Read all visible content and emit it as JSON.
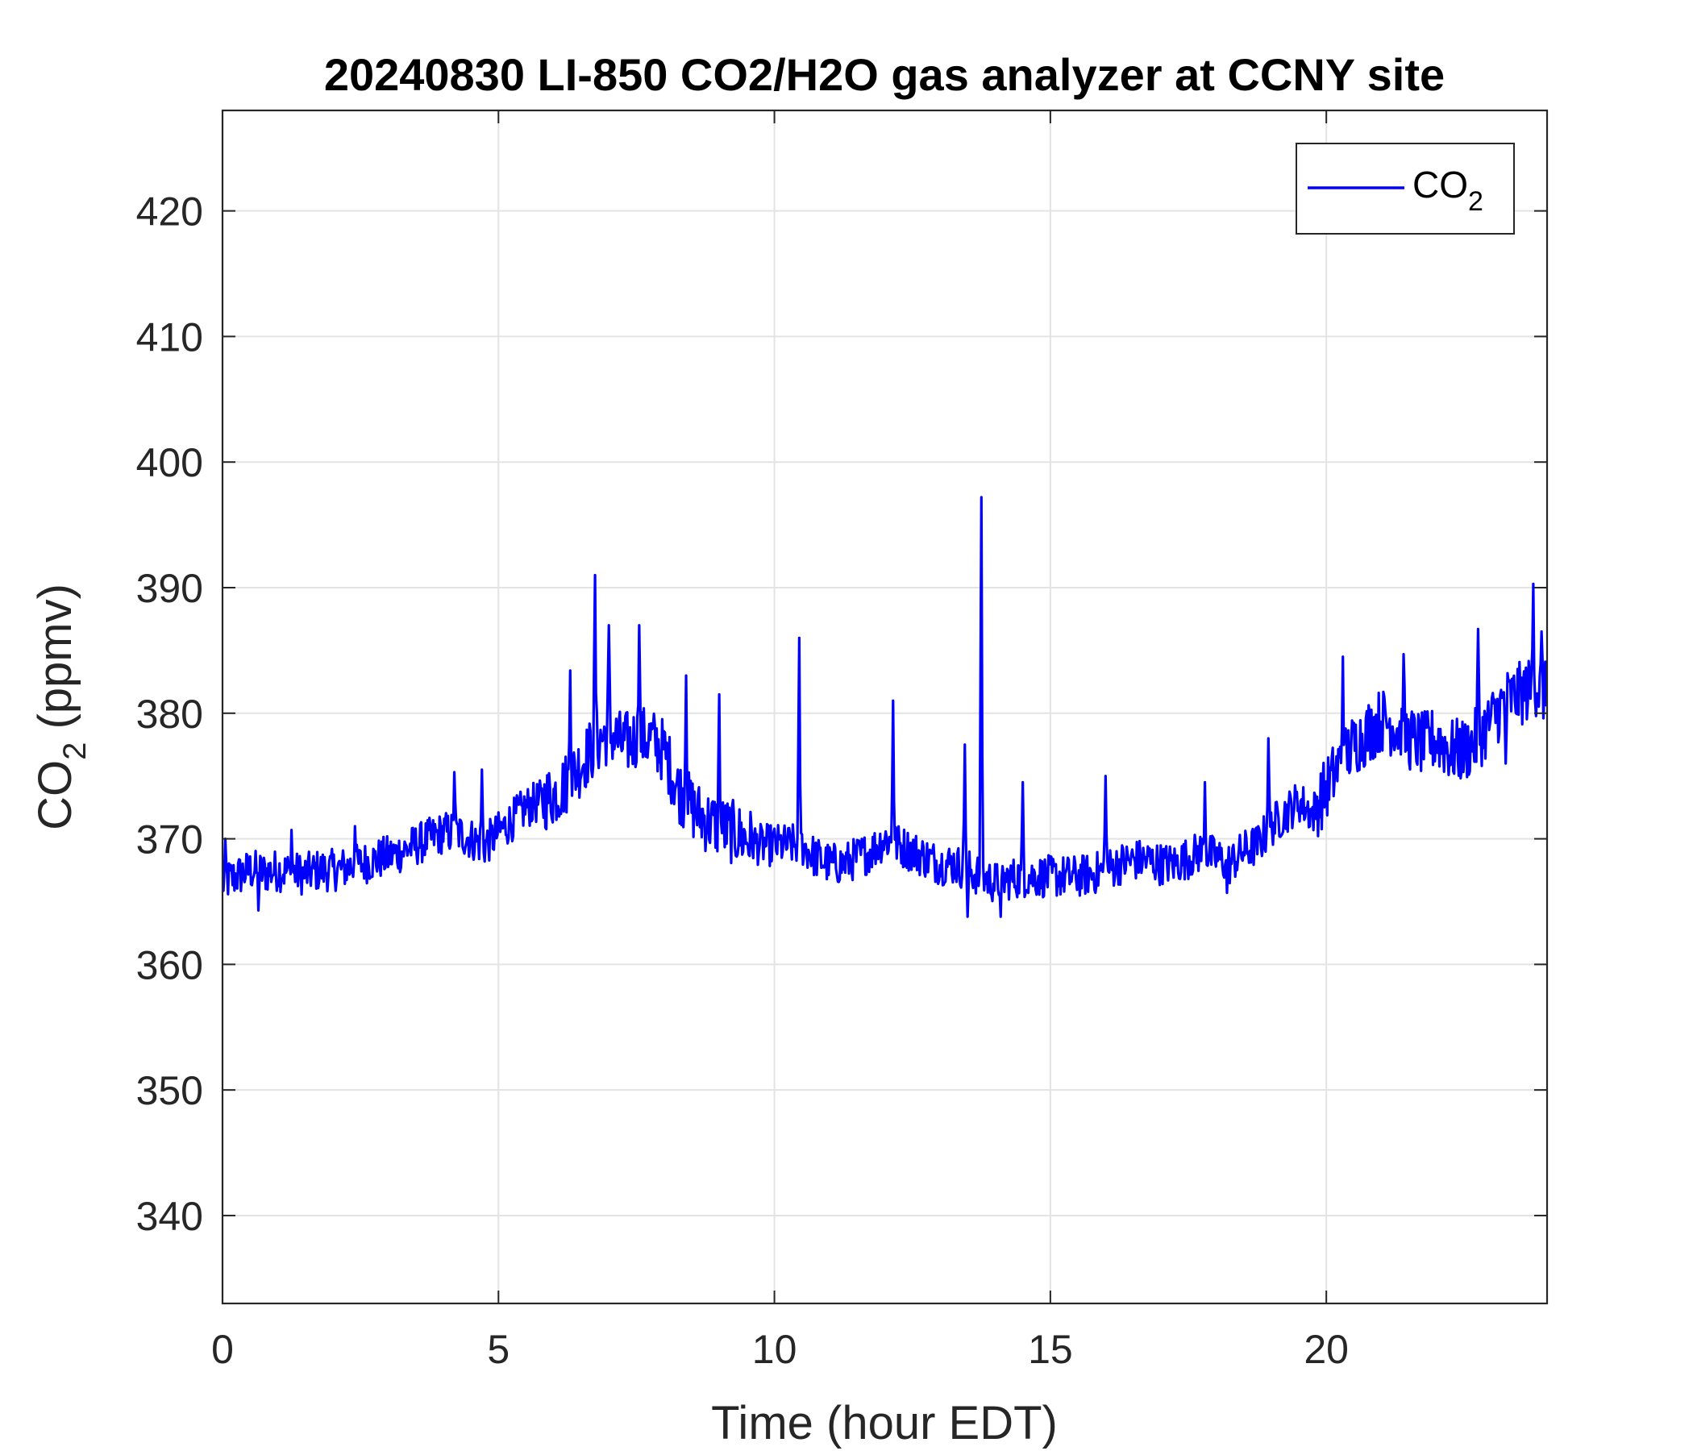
{
  "chart_data": {
    "type": "line",
    "title": "20240830 LI-850 CO2/H2O gas analyzer at CCNY site",
    "xlabel": "Time (hour EDT)",
    "ylabel": {
      "base": "CO",
      "subscript": "2",
      "suffix": " (ppmv)"
    },
    "xlim": [
      0,
      24
    ],
    "ylim": [
      333,
      428
    ],
    "xticks": [
      0,
      5,
      10,
      15,
      20
    ],
    "yticks": [
      340,
      350,
      360,
      370,
      380,
      390,
      400,
      410,
      420
    ],
    "grid": true,
    "legend_placement": "top-right",
    "colors": {
      "series": "#0000ff",
      "grid": "#e3e3e3",
      "axis": "#262626"
    },
    "series": [
      {
        "name": {
          "base": "CO",
          "subscript": "2"
        },
        "x": [
          0.0,
          0.25,
          0.5,
          0.75,
          1.0,
          1.25,
          1.5,
          1.75,
          2.0,
          2.25,
          2.5,
          2.75,
          3.0,
          3.25,
          3.5,
          3.75,
          4.0,
          4.25,
          4.5,
          4.75,
          5.0,
          5.25,
          5.5,
          5.75,
          6.0,
          6.25,
          6.5,
          6.75,
          7.0,
          7.25,
          7.5,
          7.75,
          8.0,
          8.25,
          8.5,
          8.75,
          9.0,
          9.25,
          9.5,
          9.75,
          10.0,
          10.25,
          10.5,
          10.75,
          11.0,
          11.25,
          11.5,
          11.75,
          12.0,
          12.25,
          12.5,
          12.75,
          13.0,
          13.25,
          13.5,
          13.75,
          14.0,
          14.25,
          14.5,
          14.75,
          15.0,
          15.25,
          15.5,
          15.75,
          16.0,
          16.25,
          16.5,
          16.75,
          17.0,
          17.25,
          17.5,
          17.75,
          18.0,
          18.25,
          18.5,
          18.75,
          19.0,
          19.25,
          19.5,
          19.75,
          20.0,
          20.25,
          20.5,
          20.75,
          21.0,
          21.25,
          21.5,
          21.75,
          22.0,
          22.25,
          22.5,
          22.75,
          23.0,
          23.25,
          23.5,
          23.75,
          24.0
        ],
        "values": [
          366.5,
          367.0,
          367.5,
          367.3,
          367.5,
          367.3,
          367.2,
          367.5,
          367.5,
          367.7,
          368.0,
          368.3,
          368.6,
          369.0,
          369.5,
          370.0,
          370.5,
          370.5,
          370.0,
          369.5,
          370.5,
          371.5,
          372.5,
          373.0,
          373.5,
          374.5,
          376.0,
          377.5,
          378.5,
          377.5,
          378.0,
          378.0,
          377.0,
          374.0,
          372.5,
          371.5,
          371.0,
          370.5,
          370.0,
          369.5,
          369.5,
          369.5,
          369.5,
          368.5,
          368.0,
          368.0,
          368.5,
          369.0,
          370.0,
          369.5,
          369.0,
          368.5,
          368.0,
          368.0,
          367.5,
          367.0,
          366.5,
          366.8,
          367.0,
          367.0,
          367.0,
          367.0,
          367.0,
          367.2,
          367.5,
          368.0,
          368.3,
          368.3,
          368.0,
          368.0,
          368.5,
          369.0,
          368.5,
          368.0,
          369.0,
          369.5,
          371.0,
          372.0,
          373.0,
          372.0,
          374.0,
          376.0,
          377.5,
          378.5,
          379.5,
          379.0,
          378.0,
          377.5,
          378.0,
          377.0,
          377.0,
          378.0,
          379.5,
          381.0,
          381.5,
          382.0,
          381.5
        ],
        "spikes": [
          {
            "x": 0.05,
            "value": 370.0
          },
          {
            "x": 1.25,
            "value": 370.7
          },
          {
            "x": 2.4,
            "value": 371.0
          },
          {
            "x": 4.2,
            "value": 375.3
          },
          {
            "x": 4.7,
            "value": 375.5
          },
          {
            "x": 6.3,
            "value": 383.4
          },
          {
            "x": 6.75,
            "value": 391.0
          },
          {
            "x": 7.0,
            "value": 387.0
          },
          {
            "x": 7.55,
            "value": 387.0
          },
          {
            "x": 8.4,
            "value": 383.0
          },
          {
            "x": 9.0,
            "value": 381.5
          },
          {
            "x": 10.45,
            "value": 386.0
          },
          {
            "x": 12.15,
            "value": 381.0
          },
          {
            "x": 13.45,
            "value": 377.5
          },
          {
            "x": 13.75,
            "value": 397.2
          },
          {
            "x": 14.5,
            "value": 374.5
          },
          {
            "x": 16.0,
            "value": 375.0
          },
          {
            "x": 17.8,
            "value": 374.5
          },
          {
            "x": 18.95,
            "value": 378.0
          },
          {
            "x": 20.3,
            "value": 384.5
          },
          {
            "x": 21.4,
            "value": 384.7
          },
          {
            "x": 22.75,
            "value": 386.7
          },
          {
            "x": 23.75,
            "value": 390.3
          },
          {
            "x": 23.9,
            "value": 386.5
          }
        ],
        "dips": [
          {
            "x": 0.65,
            "value": 364.3
          },
          {
            "x": 13.5,
            "value": 363.8
          },
          {
            "x": 14.1,
            "value": 363.8
          },
          {
            "x": 18.2,
            "value": 365.7
          },
          {
            "x": 23.25,
            "value": 376.0
          }
        ]
      }
    ]
  }
}
